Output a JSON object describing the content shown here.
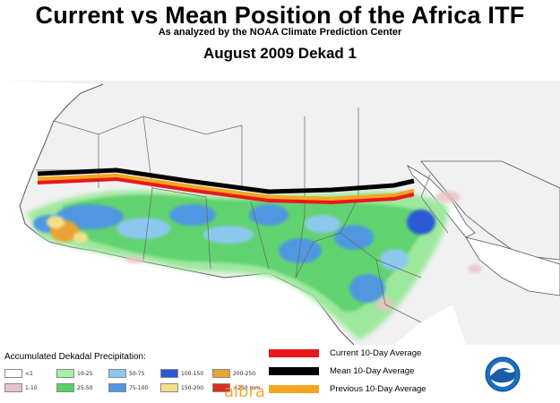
{
  "header": {
    "title": "Current vs Mean Position of the Africa ITF",
    "subtitle": "As analyzed by the NOAA Climate Prediction Center",
    "period": "August 2009 Dekad 1"
  },
  "legend": {
    "title": "Accumulated Dekadal Precipitation:",
    "classes": [
      {
        "label": "<1",
        "color": "#ffffff"
      },
      {
        "label": "1-10",
        "color": "#e8c2c6"
      },
      {
        "label": "10-25",
        "color": "#a8eea8"
      },
      {
        "label": "25-50",
        "color": "#58d06a"
      },
      {
        "label": "50-75",
        "color": "#8cc8ee"
      },
      {
        "label": "75-100",
        "color": "#4f97e1"
      },
      {
        "label": "100-150",
        "color": "#2a58d6"
      },
      {
        "label": "150-200",
        "color": "#f5e089"
      },
      {
        "label": "200-250",
        "color": "#e9a330"
      },
      {
        "label": ">250 mm",
        "color": "#d8301e"
      }
    ],
    "lines": [
      {
        "label": "Current 10-Day Average",
        "color": "#e8181c"
      },
      {
        "label": "Mean 10-Day Average",
        "color": "#000000"
      },
      {
        "label": "Previous 10-Day Average",
        "color": "#f5a623"
      }
    ]
  },
  "logo": {
    "icon": "noaa-logo-icon",
    "colors": {
      "ring": "#1b6fc0",
      "bird": "#ffffff",
      "sky": "#1a5aa8"
    }
  },
  "watermark": "albra"
}
